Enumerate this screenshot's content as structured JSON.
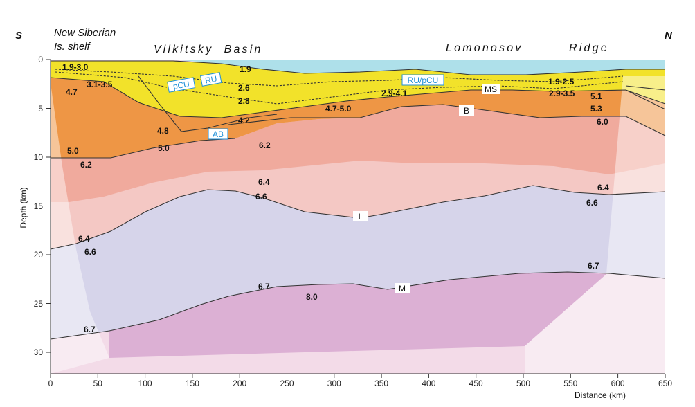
{
  "direction": {
    "left": "S",
    "right": "N"
  },
  "titles": {
    "shelf_line1": "New Siberian",
    "shelf_line2": "Is. shelf",
    "vilkitsky": "Vilkitsky  Basin",
    "lomonosov": "Lomonosov",
    "ridge": "Ridge"
  },
  "axes": {
    "y_label": "Depth (km)",
    "x_label": "Distance (km)",
    "y_ticks": [
      "0",
      "5",
      "10",
      "15",
      "20",
      "25",
      "30"
    ],
    "x_ticks": [
      "0",
      "50",
      "100",
      "150",
      "200",
      "250",
      "300",
      "350",
      "400",
      "450",
      "500",
      "550",
      "600",
      "650"
    ]
  },
  "horizon_labels": {
    "ru": "RU",
    "pcu": "pCU",
    "ru_pcu": "RU/pCU",
    "ab": "AB"
  },
  "boundary_labels": {
    "ms": "MS",
    "b": "B",
    "l": "L",
    "m": "M"
  },
  "velocities": {
    "v1": "1.9-3.0",
    "v2": "1.9",
    "v3": "3.1-3.5",
    "v4": "4.7",
    "v5": "2.6",
    "v6": "2.8",
    "v7": "2.9-4.1",
    "v8": "4.7-5.0",
    "v9": "4.2",
    "v10": "4.8",
    "v11": "5.0",
    "v12": "5.0",
    "v13": "6.2",
    "v14": "6.2",
    "v15": "1.9-2.5",
    "v16": "2.9-3.5",
    "v17": "5.1",
    "v18": "5.3",
    "v19": "6.0",
    "v20": "6.4",
    "v21": "6.6",
    "v22": "6.4",
    "v23": "6.6",
    "v24": "6.4",
    "v25": "6.6",
    "v26": "6.7",
    "v27": "8.0",
    "v28": "6.7",
    "v29": "6.7"
  },
  "colors": {
    "water": "#aee0ea",
    "yellow": "#f2e22a",
    "orange": "#ee9645",
    "salmon": "#efa596",
    "pink_light": "#f4c8c4",
    "lavender": "#d6d4ea",
    "magenta": "#dcb0d4",
    "mantle_light": "#f3dbe8",
    "label_blue": "#1d8fd8"
  }
}
